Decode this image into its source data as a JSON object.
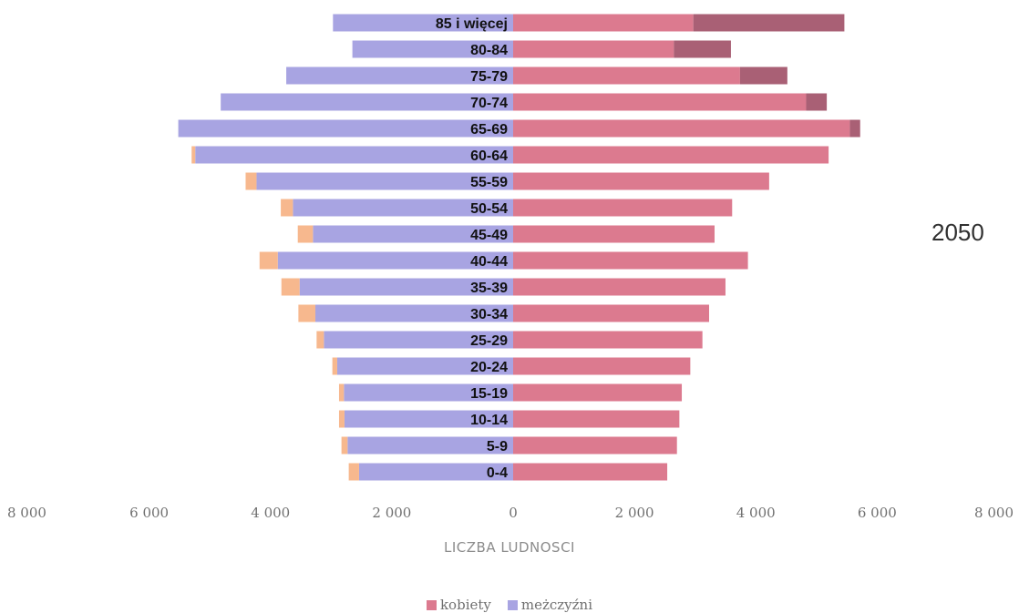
{
  "year": "2050",
  "legend": [
    {
      "name": "kobiety",
      "color": "#dc7a8f"
    },
    {
      "name": "meżczyźni",
      "color": "#a8a4e2"
    }
  ],
  "chart_data": {
    "type": "bar",
    "orientation": "horizontal",
    "title": "",
    "xlabel": "LICZBA LUDNOSCI",
    "ylabel": "",
    "xlim": [
      -8000,
      8000
    ],
    "x_ticks": [
      -8000,
      -6000,
      -4000,
      -2000,
      0,
      2000,
      4000,
      6000,
      8000
    ],
    "x_tick_labels": [
      "8 000",
      "6 000",
      "4 000",
      "2 000",
      "0",
      "2 000",
      "4 000",
      "6 000",
      "8 000"
    ],
    "legend_position": "bottom",
    "grid": false,
    "categories": [
      "0-4",
      "5-9",
      "10-14",
      "15-19",
      "20-24",
      "25-29",
      "30-34",
      "35-39",
      "40-44",
      "45-49",
      "50-54",
      "55-59",
      "60-64",
      "65-69",
      "70-74",
      "75-79",
      "80-84",
      "85 i więcej"
    ],
    "series": [
      {
        "name": "meżczyźni",
        "color": "#a8a4e2",
        "values": [
          2540,
          2730,
          2780,
          2790,
          2900,
          3120,
          3260,
          3520,
          3880,
          3300,
          3630,
          4230,
          5240,
          5520,
          4820,
          3740,
          2650,
          2970
        ]
      },
      {
        "color": "#f7b88e",
        "values": [
          170,
          100,
          90,
          80,
          80,
          120,
          280,
          300,
          300,
          250,
          200,
          180,
          60,
          0,
          0,
          0,
          0,
          0
        ]
      },
      {
        "name": "kobiety",
        "color": "#dc7a8f",
        "values": [
          2540,
          2700,
          2740,
          2780,
          2920,
          3120,
          3230,
          3500,
          3870,
          3320,
          3610,
          4220,
          5200,
          5550,
          4830,
          3740,
          2650,
          2970
        ]
      },
      {
        "color": "#a96075",
        "values": [
          0,
          0,
          0,
          0,
          0,
          0,
          0,
          0,
          0,
          0,
          0,
          0,
          0,
          170,
          340,
          780,
          940,
          2490
        ]
      }
    ]
  }
}
